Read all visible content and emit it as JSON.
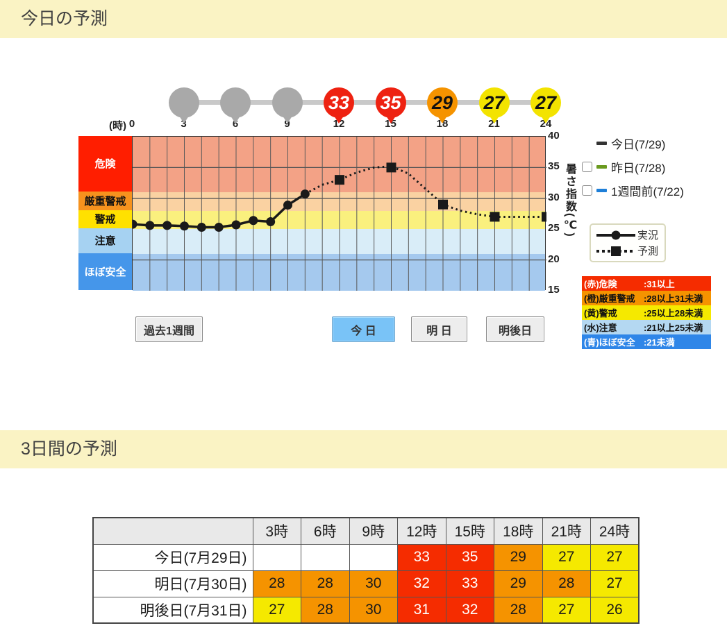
{
  "page": {
    "section1_title": "今日の予測",
    "section2_title": "3日間の予測",
    "header_bg": "#faf3c4"
  },
  "chart_data": {
    "type": "line",
    "title": "今日の予測",
    "x_unit_label": "(時)",
    "x_ticks": [
      0,
      3,
      6,
      9,
      12,
      15,
      18,
      21,
      24
    ],
    "xlim": [
      0,
      24
    ],
    "y_ticks": [
      40,
      35,
      30,
      25,
      20,
      15
    ],
    "ylim": [
      15,
      40
    ],
    "ylabel": "暑さ指数(℃)",
    "grid": true,
    "gridline_y": [
      35,
      30,
      20
    ],
    "bands": [
      {
        "label": "危険",
        "range": [
          31,
          40
        ],
        "label_bg": "#ff1e00",
        "area_bg": "#f3a286",
        "text_color": "#ffffff"
      },
      {
        "label": "厳重警戒",
        "range": [
          28,
          31
        ],
        "label_bg": "#f6921e",
        "area_bg": "#fad2a2",
        "text_color": "#111111"
      },
      {
        "label": "警戒",
        "range": [
          25,
          28
        ],
        "label_bg": "#ffe100",
        "area_bg": "#faf07e",
        "text_color": "#111111"
      },
      {
        "label": "注意",
        "range": [
          21,
          25
        ],
        "label_bg": "#a6d2f2",
        "area_bg": "#d9edf8",
        "text_color": "#111111"
      },
      {
        "label": "ほぼ安全",
        "range": [
          15,
          21
        ],
        "label_bg": "#4596ea",
        "area_bg": "#a5c9ee",
        "text_color": "#ffffff"
      }
    ],
    "balloons": [
      {
        "hour": 3,
        "value": "",
        "color": "#a9a9a9",
        "text_color": "#ffffff"
      },
      {
        "hour": 6,
        "value": "",
        "color": "#a9a9a9",
        "text_color": "#ffffff"
      },
      {
        "hour": 9,
        "value": "",
        "color": "#a9a9a9",
        "text_color": "#ffffff"
      },
      {
        "hour": 12,
        "value": "33",
        "color": "#ee2211",
        "text_color": "#ffffff"
      },
      {
        "hour": 15,
        "value": "35",
        "color": "#ee2211",
        "text_color": "#ffffff"
      },
      {
        "hour": 18,
        "value": "29",
        "color": "#f59300",
        "text_color": "#111111"
      },
      {
        "hour": 21,
        "value": "27",
        "color": "#f3e300",
        "text_color": "#111111"
      },
      {
        "hour": 24,
        "value": "27",
        "color": "#f3e300",
        "text_color": "#111111"
      }
    ],
    "series": [
      {
        "name": "実況",
        "style": "solid",
        "marker": "circle",
        "color": "#1a1a1a",
        "x": [
          0,
          1,
          2,
          3,
          4,
          5,
          6,
          7,
          8,
          9,
          10
        ],
        "values": [
          25.8,
          25.6,
          25.6,
          25.5,
          25.3,
          25.3,
          25.7,
          26.4,
          26.2,
          28.9,
          30.7
        ]
      },
      {
        "name": "予測",
        "style": "dotted",
        "marker": "square",
        "color": "#1a1a1a",
        "x": [
          10,
          11,
          12,
          13,
          14,
          15,
          16,
          17,
          18,
          19,
          20,
          21,
          22,
          23,
          24
        ],
        "values": [
          30.7,
          32.2,
          33,
          34.2,
          35,
          35.2,
          34,
          31.5,
          29,
          28,
          27.4,
          27,
          27,
          27,
          27
        ],
        "marker_hours": [
          12,
          15,
          18,
          21,
          24
        ],
        "marker_values": [
          33,
          35,
          29,
          27,
          27
        ]
      }
    ]
  },
  "day_legend": {
    "items": [
      {
        "label": "今日(7/29)",
        "dash_color": "#333333",
        "has_checkbox": false,
        "checked": false
      },
      {
        "label": "昨日(7/28)",
        "dash_color": "#6a9a1f",
        "has_checkbox": true,
        "checked": false
      },
      {
        "label": "1週間前(7/22)",
        "dash_color": "#1e7fd8",
        "has_checkbox": true,
        "checked": false
      }
    ]
  },
  "line_legend": {
    "observed": "実況",
    "forecast": "予測"
  },
  "scale_legend": {
    "rows": [
      {
        "label": "(赤)危険",
        "value": ":31以上",
        "bg": "#f52c00",
        "color": "#ffffff"
      },
      {
        "label": "(橙)厳重警戒",
        "value": ":28以上31未満",
        "bg": "#f59300",
        "color": "#111111"
      },
      {
        "label": "(黄)警戒",
        "value": ":25以上28未満",
        "bg": "#f5e900",
        "color": "#111111"
      },
      {
        "label": "(水)注意",
        "value": ":21以上25未満",
        "bg": "#b4d8f2",
        "color": "#111111"
      },
      {
        "label": "(青)ほぼ安全",
        "value": ":21未満",
        "bg": "#2f86e8",
        "color": "#ffffff"
      }
    ]
  },
  "controls": {
    "history_button": "過去1週間",
    "day_tabs": [
      {
        "label": "今 日",
        "active": true
      },
      {
        "label": "明 日",
        "active": false
      },
      {
        "label": "明後日",
        "active": false
      }
    ]
  },
  "table": {
    "col_headers": [
      "3時",
      "6時",
      "9時",
      "12時",
      "15時",
      "18時",
      "21時",
      "24時"
    ],
    "rows": [
      {
        "label": "今日(7月29日)",
        "values": [
          "",
          "",
          "",
          33,
          35,
          29,
          27,
          27
        ]
      },
      {
        "label": "明日(7月30日)",
        "values": [
          28,
          28,
          30,
          32,
          33,
          29,
          28,
          27
        ]
      },
      {
        "label": "明後日(7月31日)",
        "values": [
          27,
          28,
          30,
          31,
          32,
          28,
          27,
          26
        ]
      }
    ],
    "cell_colors": {
      "red": "#f52c00",
      "orange": "#f59300",
      "yellow": "#f5e900",
      "red_text": "#ffffff",
      "dark_text": "#1a1a1a"
    }
  }
}
